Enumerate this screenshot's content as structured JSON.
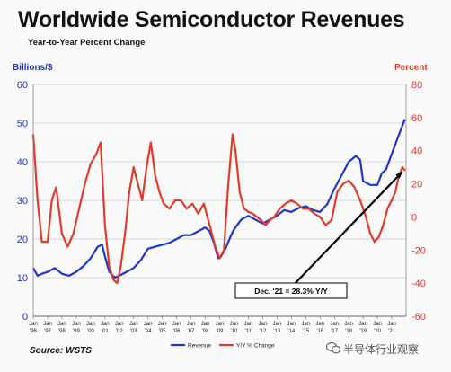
{
  "chart_data": {
    "type": "line",
    "title": "Worldwide Semiconductor Revenues",
    "subtitle": "Year-to-Year Percent Change",
    "left_axis_label": "Billions/$",
    "right_axis_label": "Percent",
    "left_ylim": [
      0,
      60
    ],
    "right_ylim": [
      -60,
      80
    ],
    "left_ticks": [
      "0",
      "10",
      "20",
      "30",
      "40",
      "50",
      "60"
    ],
    "right_ticks": [
      "-60",
      "-40",
      "-20",
      "0",
      "20",
      "40",
      "60",
      "80"
    ],
    "x_tick_top": [
      "Jan",
      "Jan",
      "Jan",
      "Jan",
      "Jan",
      "Jan",
      "Jan",
      "Jan",
      "Jan",
      "Jan",
      "Jan",
      "Jan",
      "Jan",
      "Jan",
      "Jan",
      "Jan",
      "Jan",
      "Jan",
      "Jan",
      "Jan",
      "Jan",
      "Jan",
      "Jan",
      "Jan",
      "Jan",
      "Jan"
    ],
    "x_tick_bottom": [
      "'96",
      "'97",
      "'98",
      "'99",
      "'00",
      "'01",
      "'02",
      "'03",
      "'04",
      "'05",
      "'06",
      "'07",
      "'08",
      "'09",
      "'10",
      "'11",
      "'12",
      "'13",
      "'14",
      "'15",
      "'16",
      "'17",
      "'18",
      "'19",
      "'20",
      "'21"
    ],
    "x_range": [
      1996,
      2022
    ],
    "grid": "horizontal",
    "legend_position": "bottom-center",
    "series": [
      {
        "name": "Revenue",
        "axis": "left",
        "color": "#1f35c9",
        "x": [
          1996.0,
          1996.3,
          1996.6,
          1997.0,
          1997.5,
          1998.0,
          1998.5,
          1999.0,
          1999.5,
          2000.0,
          2000.5,
          2000.8,
          2001.0,
          2001.3,
          2001.7,
          2002.0,
          2002.5,
          2003.0,
          2003.5,
          2004.0,
          2004.5,
          2005.0,
          2005.5,
          2006.0,
          2006.5,
          2007.0,
          2007.5,
          2008.0,
          2008.3,
          2008.6,
          2008.9,
          2009.1,
          2009.4,
          2009.8,
          2010.0,
          2010.5,
          2011.0,
          2011.5,
          2012.0,
          2012.5,
          2013.0,
          2013.5,
          2014.0,
          2014.5,
          2015.0,
          2015.5,
          2016.0,
          2016.5,
          2017.0,
          2017.5,
          2018.0,
          2018.5,
          2018.8,
          2019.0,
          2019.5,
          2020.0,
          2020.3,
          2020.6,
          2021.0,
          2021.3,
          2021.6,
          2021.92
        ],
        "values": [
          12.5,
          10.5,
          11.0,
          11.5,
          12.5,
          11.0,
          10.5,
          11.5,
          13.0,
          15.0,
          18.0,
          18.5,
          15.5,
          11.5,
          10.0,
          10.5,
          11.5,
          12.5,
          14.5,
          17.5,
          18.0,
          18.5,
          19.0,
          20.0,
          21.0,
          21.0,
          22.0,
          23.0,
          22.0,
          19.0,
          15.0,
          15.5,
          17.5,
          21.0,
          22.5,
          25.0,
          26.0,
          25.0,
          24.0,
          25.0,
          26.0,
          27.5,
          27.0,
          28.0,
          28.5,
          27.5,
          27.0,
          29.0,
          33.0,
          36.5,
          40.0,
          41.5,
          40.5,
          35.0,
          34.0,
          34.0,
          37.0,
          38.0,
          42.0,
          45.0,
          48.0,
          51.0
        ]
      },
      {
        "name": "Y/Y % Change",
        "axis": "right",
        "color": "#e03a2a",
        "x": [
          1996.0,
          1996.3,
          1996.6,
          1997.0,
          1997.3,
          1997.6,
          1998.0,
          1998.4,
          1998.8,
          1999.2,
          1999.6,
          2000.0,
          2000.4,
          2000.7,
          2000.85,
          2001.0,
          2001.3,
          2001.6,
          2001.85,
          2002.1,
          2002.4,
          2002.7,
          2003.0,
          2003.3,
          2003.6,
          2003.9,
          2004.2,
          2004.5,
          2004.8,
          2005.1,
          2005.5,
          2005.9,
          2006.3,
          2006.7,
          2007.1,
          2007.5,
          2007.9,
          2008.3,
          2008.7,
          2009.0,
          2009.3,
          2009.6,
          2009.9,
          2010.1,
          2010.4,
          2010.7,
          2011.0,
          2011.3,
          2011.6,
          2011.9,
          2012.2,
          2012.5,
          2012.8,
          2013.2,
          2013.6,
          2014.0,
          2014.4,
          2014.8,
          2015.2,
          2015.6,
          2016.0,
          2016.4,
          2016.8,
          2017.2,
          2017.6,
          2018.0,
          2018.4,
          2018.8,
          2019.2,
          2019.5,
          2019.8,
          2020.1,
          2020.4,
          2020.7,
          2021.0,
          2021.25,
          2021.5,
          2021.75,
          2021.92
        ],
        "values": [
          50,
          10,
          -15,
          -15,
          10,
          18,
          -10,
          -18,
          -10,
          5,
          20,
          32,
          38,
          45,
          20,
          -5,
          -30,
          -38,
          -40,
          -30,
          -10,
          15,
          30,
          20,
          10,
          30,
          45,
          25,
          15,
          8,
          5,
          10,
          10,
          5,
          8,
          2,
          8,
          -5,
          -18,
          -25,
          -20,
          20,
          50,
          40,
          15,
          5,
          3,
          2,
          0,
          -2,
          -5,
          -2,
          0,
          5,
          8,
          10,
          8,
          5,
          5,
          2,
          0,
          -5,
          -2,
          15,
          20,
          22,
          18,
          10,
          0,
          -10,
          -15,
          -12,
          -5,
          5,
          10,
          15,
          25,
          30,
          28
        ]
      }
    ],
    "legend": [
      "Revenue",
      "Y/Y % Change"
    ],
    "annotation": "Dec. '21 = 28.3% Y/Y",
    "source": "Source: WSTS"
  },
  "watermark": "半导体行业观察"
}
